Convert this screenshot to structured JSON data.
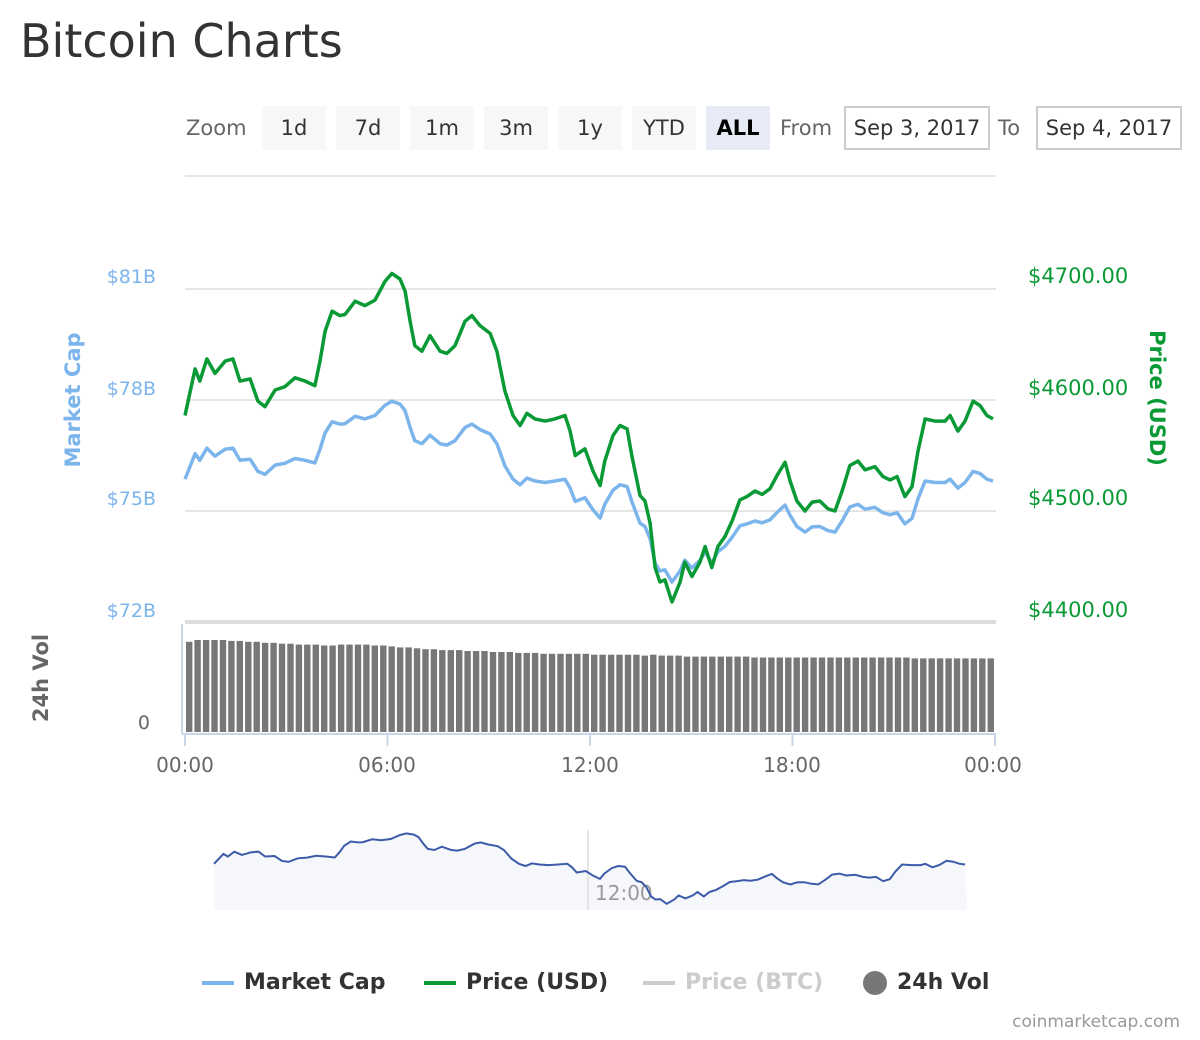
{
  "title": "Bitcoin Charts",
  "range_selector": {
    "zoom_label": "Zoom",
    "buttons": [
      "1d",
      "7d",
      "1m",
      "3m",
      "1y",
      "YTD",
      "ALL"
    ],
    "selected": "ALL",
    "from_label": "From",
    "from_value": "Sep 3, 2017",
    "to_label": "To",
    "to_value": "Sep 4, 2017"
  },
  "credits": "coinmarketcap.com",
  "colors": {
    "market_cap": "#7cb5ec",
    "price_usd": "#0a9a35",
    "price_btc": "#cccccc",
    "volume": "#777777",
    "navigator": "#3c5ba8"
  },
  "chart_data": {
    "type": "line",
    "title": "Bitcoin Charts",
    "x_ticks": [
      "00:00",
      "06:00",
      "12:00",
      "18:00",
      "00:00"
    ],
    "x_hours": [
      0,
      0.3,
      0.44,
      0.65,
      0.89,
      1.19,
      1.42,
      1.63,
      1.93,
      2.16,
      2.37,
      2.67,
      2.96,
      3.26,
      3.56,
      3.85,
      4.0,
      4.15,
      4.36,
      4.59,
      4.74,
      5.04,
      5.33,
      5.63,
      5.93,
      6.13,
      6.37,
      6.52,
      6.67,
      6.81,
      7.02,
      7.26,
      7.56,
      7.76,
      8.0,
      8.3,
      8.5,
      8.74,
      9.04,
      9.24,
      9.48,
      9.72,
      9.93,
      10.13,
      10.37,
      10.67,
      10.96,
      11.26,
      11.41,
      11.56,
      11.85,
      12.09,
      12.3,
      12.44,
      12.68,
      12.89,
      13.1,
      13.24,
      13.48,
      13.63,
      13.78,
      13.93,
      14.07,
      14.22,
      14.43,
      14.67,
      14.81,
      15.02,
      15.26,
      15.41,
      15.61,
      15.79,
      16.0,
      16.21,
      16.44,
      16.65,
      16.89,
      17.1,
      17.33,
      17.54,
      17.78,
      17.93,
      18.13,
      18.37,
      18.58,
      18.81,
      19.05,
      19.26,
      19.47,
      19.7,
      19.94,
      20.15,
      20.44,
      20.68,
      20.89,
      21.1,
      21.33,
      21.54,
      21.72,
      21.93,
      22.22,
      22.52,
      22.67,
      22.9,
      23.11,
      23.35,
      23.56,
      23.76,
      23.94
    ],
    "series": [
      {
        "name": "Market Cap",
        "axis": "left",
        "unit": "billion USD",
        "values": [
          75.86,
          76.55,
          76.37,
          76.7,
          76.48,
          76.67,
          76.7,
          76.37,
          76.4,
          76.07,
          75.99,
          76.24,
          76.29,
          76.42,
          76.37,
          76.3,
          76.67,
          77.11,
          77.41,
          77.35,
          77.36,
          77.56,
          77.49,
          77.58,
          77.86,
          77.97,
          77.89,
          77.71,
          77.26,
          76.9,
          76.82,
          77.05,
          76.82,
          76.78,
          76.9,
          77.26,
          77.35,
          77.2,
          77.08,
          76.82,
          76.22,
          75.86,
          75.71,
          75.89,
          75.81,
          75.77,
          75.81,
          75.86,
          75.62,
          75.26,
          75.36,
          75.03,
          74.81,
          75.18,
          75.56,
          75.71,
          75.66,
          75.26,
          74.67,
          74.58,
          74.25,
          73.59,
          73.38,
          73.41,
          73.08,
          73.38,
          73.67,
          73.46,
          73.67,
          73.9,
          73.59,
          73.9,
          74.05,
          74.29,
          74.6,
          74.65,
          74.73,
          74.68,
          74.76,
          74.96,
          75.16,
          74.88,
          74.58,
          74.43,
          74.57,
          74.58,
          74.47,
          74.43,
          74.73,
          75.11,
          75.18,
          75.05,
          75.1,
          74.95,
          74.9,
          74.95,
          74.65,
          74.8,
          75.33,
          75.81,
          75.77,
          75.77,
          75.86,
          75.62,
          75.77,
          76.07,
          76.01,
          75.86,
          75.81
        ]
      },
      {
        "name": "Price (USD)",
        "axis": "right",
        "unit": "USD",
        "values": [
          4586,
          4628,
          4617,
          4637,
          4624,
          4635,
          4637,
          4617,
          4619,
          4599,
          4594,
          4609,
          4612,
          4620,
          4617,
          4613,
          4635,
          4662,
          4680,
          4676,
          4677,
          4689,
          4685,
          4690,
          4707,
          4714,
          4709,
          4698,
          4671,
          4649,
          4644,
          4658,
          4644,
          4642,
          4649,
          4671,
          4676,
          4667,
          4660,
          4644,
          4608,
          4586,
          4577,
          4588,
          4583,
          4581,
          4583,
          4586,
          4572,
          4550,
          4556,
          4536,
          4523,
          4545,
          4568,
          4577,
          4574,
          4550,
          4514,
          4509,
          4489,
          4449,
          4436,
          4438,
          4418,
          4436,
          4454,
          4441,
          4454,
          4468,
          4449,
          4468,
          4477,
          4491,
          4510,
          4513,
          4518,
          4515,
          4520,
          4532,
          4544,
          4527,
          4509,
          4500,
          4508,
          4509,
          4502,
          4500,
          4518,
          4541,
          4545,
          4537,
          4540,
          4531,
          4528,
          4531,
          4513,
          4522,
          4554,
          4583,
          4581,
          4581,
          4586,
          4572,
          4581,
          4599,
          4595,
          4586,
          4583
        ]
      }
    ],
    "y_left": {
      "title": "Market Cap",
      "ticks": [
        "$81B",
        "$78B",
        "$75B",
        "$72B"
      ],
      "tick_values": [
        81,
        78,
        75,
        72
      ],
      "range": [
        72,
        81
      ]
    },
    "y_right": {
      "title": "Price (USD)",
      "ticks": [
        "$4700.00",
        "$4600.00",
        "$4500.00",
        "$4400.00"
      ],
      "tick_values": [
        4700,
        4600,
        4500,
        4400
      ],
      "range": [
        4400,
        4700
      ]
    },
    "volume": {
      "title": "24h Vol",
      "tick": "0",
      "unit": "relative",
      "range": [
        0,
        100
      ],
      "values": [
        98,
        100,
        100,
        100,
        100,
        99,
        99,
        98,
        98,
        97,
        97,
        96,
        96,
        95,
        95,
        95,
        94,
        94,
        95,
        95,
        95,
        95,
        94,
        94,
        93,
        92,
        92,
        91,
        90,
        90,
        89,
        89,
        89,
        88,
        88,
        88,
        87,
        87,
        87,
        86,
        86,
        86,
        85,
        85,
        85,
        85,
        85,
        85,
        84,
        84,
        84,
        84,
        84,
        84,
        83,
        84,
        83,
        83,
        83,
        82,
        82,
        82,
        82,
        82,
        82,
        82,
        82,
        81,
        81,
        81,
        81,
        81,
        81,
        81,
        81,
        81,
        81,
        81,
        81,
        81,
        81,
        81,
        81,
        81,
        81,
        81,
        80,
        80,
        80,
        80,
        80,
        80,
        80,
        80,
        80,
        80
      ]
    },
    "navigator": {
      "x_tick": "12:00"
    },
    "legend": [
      {
        "name": "Market Cap",
        "visible": true
      },
      {
        "name": "Price (USD)",
        "visible": true
      },
      {
        "name": "Price (BTC)",
        "visible": false
      },
      {
        "name": "24h Vol",
        "visible": true
      }
    ]
  }
}
